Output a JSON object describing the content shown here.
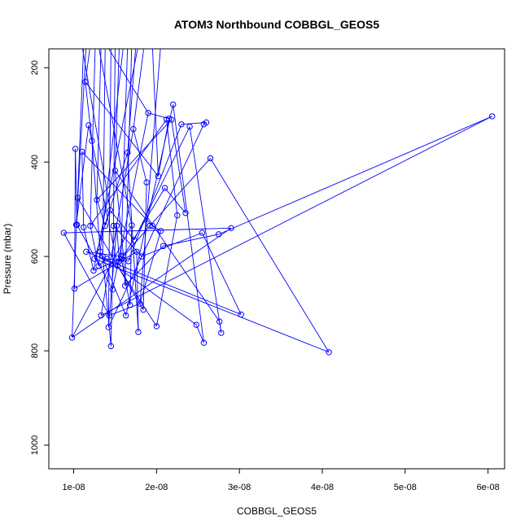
{
  "chart_data": {
    "type": "scatter",
    "title": "ATOM3 Northbound COBBGL_GEOS5",
    "xlabel": "COBBGL_GEOS5",
    "ylabel": "Pressure (mbar)",
    "xlim": [
      7e-09,
      6.2e-08
    ],
    "ylim": [
      1050,
      160
    ],
    "y_reversed": true,
    "x_ticks": [
      1e-08,
      2e-08,
      3e-08,
      4e-08,
      5e-08,
      6e-08
    ],
    "x_tick_labels": [
      "1e-08",
      "2e-08",
      "3e-08",
      "4e-08",
      "5e-08",
      "6e-08"
    ],
    "y_ticks": [
      200,
      400,
      600,
      800,
      1000
    ],
    "y_tick_labels": [
      "200",
      "400",
      "600",
      "800",
      "1000"
    ],
    "grid": false,
    "legend": "none",
    "colors": {
      "series": "#0000ff"
    },
    "series": [
      {
        "x": [
          9.8e-09,
          1.01e-08,
          1.05e-08,
          1.1e-08,
          1.14e-08,
          1.2e-08,
          1.28e-08,
          1.35e-08,
          1.42e-08,
          1.5e-08,
          1.57e-08,
          1.65e-08,
          1.72e-08,
          1.8e-08,
          1.9e-08,
          2e-08,
          2.1e-08,
          2.2e-08,
          2.3e-08,
          2.4e-08,
          2.55e-08,
          2.65e-08,
          2.75e-08,
          2.9e-08,
          1.02e-08,
          1.03e-08,
          1.12e-08,
          1.22e-08,
          1.3e-08,
          1.38e-08,
          1.45e-08,
          1.52e-08,
          1.6e-08,
          1.68e-08,
          1.78e-08,
          1.88e-08,
          2.05e-08,
          2.15e-08,
          2.25e-08,
          2.35e-08,
          2.57e-08,
          2.6e-08,
          2.78e-08,
          3.02e-08,
          4.08e-08,
          6.05e-08,
          8.8e-09,
          1.04e-08,
          1.18e-08,
          1.24e-08,
          1.32e-08,
          1.4e-08,
          1.44e-08,
          1.48e-08,
          1.55e-08,
          1.62e-08,
          1.7e-08,
          1.76e-08,
          1.84e-08,
          1.95e-08,
          2.02e-08,
          2.12e-08,
          2.18e-08,
          2.48e-08,
          2.57e-08,
          2.76e-08,
          1.15e-08,
          1.25e-08,
          1.33e-08,
          1.43e-08,
          1.47e-08,
          1.53e-08,
          1.58e-08,
          1.63e-08,
          1.66e-08,
          1.73e-08,
          1.82e-08,
          1.92e-08,
          2.08e-08
        ],
        "y": [
          772,
          668,
          476,
          378,
          230,
          535,
          480,
          600,
          750,
          418,
          600,
          380,
          330,
          700,
          296,
          748,
          455,
          278,
          320,
          325,
          550,
          392,
          553,
          540,
          372,
          533,
          538,
          355,
          620,
          535,
          790,
          535,
          598,
          703,
          760,
          443,
          546,
          308,
          513,
          508,
          783,
          316,
          762,
          723,
          803,
          303,
          550,
          533,
          322,
          630,
          590,
          605,
          502,
          535,
          610,
          662,
          534,
          590,
          713,
          535,
          430,
          310,
          310,
          745,
          320,
          738,
          590,
          605,
          725,
          725,
          670,
          620,
          605,
          725,
          610,
          565,
          600,
          535,
          578
        ]
      }
    ]
  }
}
